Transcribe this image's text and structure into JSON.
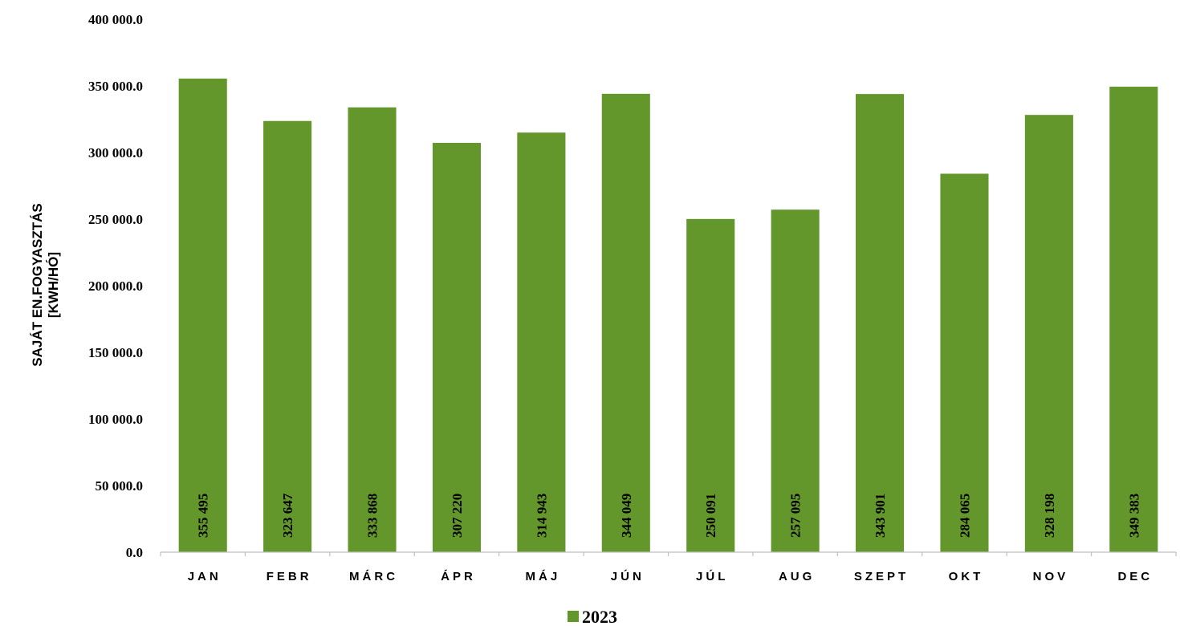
{
  "chart_data": {
    "type": "bar",
    "categories": [
      "JAN",
      "FEBR",
      "MÁRC",
      "ÁPR",
      "MÁJ",
      "JÚN",
      "JÚL",
      "AUG",
      "SZEPT",
      "OKT",
      "NOV",
      "DEC"
    ],
    "series": [
      {
        "name": "2023",
        "values": [
          355495,
          323647,
          333868,
          307220,
          314943,
          344049,
          250091,
          257095,
          343901,
          284065,
          328198,
          349383
        ],
        "data_labels": [
          "355 495",
          "323 647",
          "333 868",
          "307 220",
          "314 943",
          "344 049",
          "250 091",
          "257 095",
          "343 901",
          "284 065",
          "328 198",
          "349 383"
        ]
      }
    ],
    "title": "",
    "xlabel": "",
    "ylabel_lines": [
      "SAJÁT EN.FOGYASZTÁS",
      "[KWH/HÓ]"
    ],
    "ylim": [
      0,
      400000
    ],
    "yticks": [
      0,
      50000,
      100000,
      150000,
      200000,
      250000,
      300000,
      350000,
      400000
    ],
    "ytick_labels": [
      "0.0",
      "50 000.0",
      "100 000.0",
      "150 000.0",
      "200 000.0",
      "250 000.0",
      "300 000.0",
      "350 000.0",
      "400 000.0"
    ],
    "grid": false,
    "legend_position": "bottom",
    "bar_color": "#64972b"
  }
}
